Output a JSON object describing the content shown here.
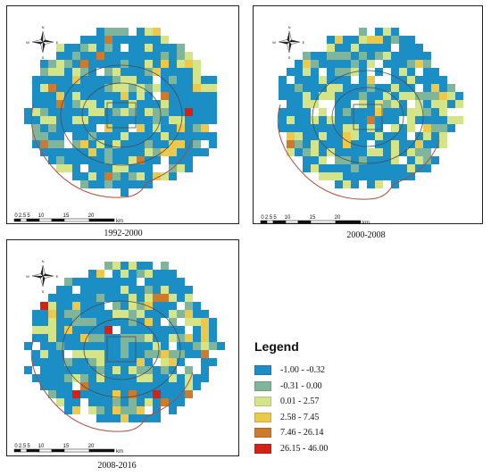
{
  "maps": [
    {
      "id": "p1992",
      "caption": "1992-2000",
      "weights": [
        0.62,
        0.16,
        0.17,
        0.04,
        0.008,
        0.002
      ],
      "seed": 11
    },
    {
      "id": "p2000",
      "caption": "2000-2008",
      "weights": [
        0.58,
        0.12,
        0.22,
        0.06,
        0.015,
        0.005
      ],
      "seed": 29
    },
    {
      "id": "p2008",
      "caption": "2008-2016",
      "weights": [
        0.6,
        0.14,
        0.17,
        0.06,
        0.02,
        0.01
      ],
      "seed": 47
    }
  ],
  "scale_bar": {
    "labels": [
      "0",
      "2.5",
      "5",
      "10",
      "15",
      "20"
    ],
    "unit": "km"
  },
  "compass": {
    "n": "N",
    "s": "S",
    "e": "E",
    "w": "W"
  },
  "legend": {
    "title": "Legend",
    "classes": [
      {
        "label": "-1.00 - -0.32",
        "color": "#1b8fc5"
      },
      {
        "label": "-0.31 - 0.00",
        "color": "#7fb59a"
      },
      {
        "label": "0.01 - 2.57",
        "color": "#d4e486"
      },
      {
        "label": "2.58 - 7.45",
        "color": "#ecc84b"
      },
      {
        "label": "7.46 - 26.14",
        "color": "#cf7a2b"
      },
      {
        "label": "26.15 - 46.00",
        "color": "#d62016"
      }
    ]
  },
  "boundary_color": "#b04a3a",
  "ring_color": "#4a4a4a"
}
